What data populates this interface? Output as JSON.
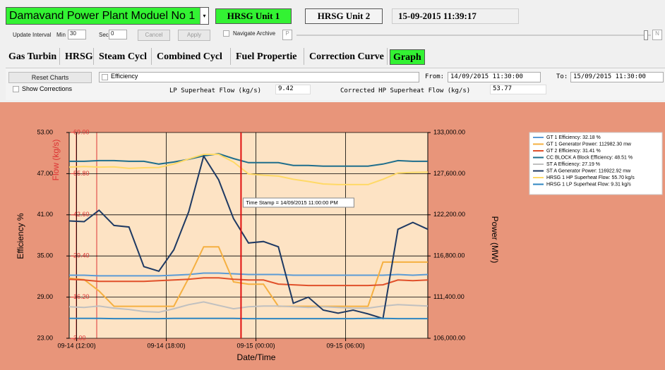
{
  "header": {
    "plant": "Damavand Power Plant Moduel No 1",
    "units": [
      "HRSG Unit 1",
      "HRSG Unit 2"
    ],
    "datetime": "15-09-2015 11:39:17"
  },
  "toolbar": {
    "update_interval": "Update Interval",
    "min_label": "Min",
    "min": 30,
    "sec_label": "Sec",
    "sec": 0,
    "cancel": "Cancel",
    "apply": "Apply",
    "navigate_archive": "Navigate Archive",
    "prev": "P",
    "next": "N"
  },
  "tabs": [
    "Gas Turbin",
    "HRSG",
    "Steam Cycl",
    "Combined Cycl",
    "Fuel Propertie",
    "Correction Curve",
    "Graph"
  ],
  "active_tab": 6,
  "panel": {
    "reset": "Reset Charts",
    "series_select": "Efficiency",
    "from_label": "From:",
    "from": "14/09/2015 11:30:00",
    "to_label": "To:",
    "to": "15/09/2015 11:30:00",
    "show_corrections": "Show Corrections",
    "lp_label": "LP Superheat Flow (kg/s)",
    "lp_value": 9.42,
    "hp_label": "Corrected HP Superheat Flow (kg/s)",
    "hp_value": 53.77
  },
  "chart_data": {
    "type": "line",
    "xlabel": "Date/Time",
    "ylabel": "Efficiency %",
    "y2label": "Power (MW)",
    "y3label": "Flow (kg/s)",
    "x": [
      11.5,
      12.5,
      13.5,
      14.5,
      15.5,
      16.5,
      17.5,
      18.5,
      19.5,
      20.5,
      21.5,
      22.5,
      23.5,
      24.5,
      25.5,
      26.5,
      27.5,
      28.5,
      29.5,
      30.5,
      31.5,
      32.5,
      33.5,
      34.5,
      35.5
    ],
    "xlim": [
      11.5,
      35.5
    ],
    "xticks": [
      {
        "value": 12,
        "label": "09-14 (12:00)"
      },
      {
        "value": 18,
        "label": "09-14 (18:00)"
      },
      {
        "value": 24,
        "label": "09-15 (00:00)"
      },
      {
        "value": 30,
        "label": "09-15 (06:00)"
      }
    ],
    "ylim": [
      23,
      53
    ],
    "yticks": [
      {
        "value": 23,
        "label": "23.00"
      },
      {
        "value": 29,
        "label": "29.00"
      },
      {
        "value": 35,
        "label": "35.00"
      },
      {
        "value": 41,
        "label": "41.00"
      },
      {
        "value": 47,
        "label": "47.00"
      },
      {
        "value": 53,
        "label": "53.00"
      }
    ],
    "y2lim": [
      106000,
      133000
    ],
    "y2ticks": [
      {
        "value": 106000,
        "label": "106,000.00"
      },
      {
        "value": 111400,
        "label": "111,400.00"
      },
      {
        "value": 116800,
        "label": "116,800.00"
      },
      {
        "value": 122200,
        "label": "122,200.00"
      },
      {
        "value": 127600,
        "label": "127,600.00"
      },
      {
        "value": 133000,
        "label": "133,000.00"
      }
    ],
    "y3lim": [
      3,
      69
    ],
    "y3ticks": [
      {
        "value": 3,
        "label": "3.00"
      },
      {
        "value": 16.2,
        "label": "16.20"
      },
      {
        "value": 29.4,
        "label": "29.40"
      },
      {
        "value": 42.6,
        "label": "42.60"
      },
      {
        "value": 55.8,
        "label": "55.80"
      },
      {
        "value": 69,
        "label": "69.00"
      }
    ],
    "grid": true,
    "cursor": {
      "x": 23,
      "label": "Time Stamp = 14/09/2015 11:00:00 PM"
    },
    "series": [
      {
        "name": "GT 1 Efficiency: 32.18 %",
        "color": "#5b9bd5",
        "axis": "y",
        "values": [
          32.2,
          32.2,
          32.1,
          32.1,
          32.1,
          32.1,
          32.1,
          32.2,
          32.3,
          32.5,
          32.5,
          32.4,
          32.3,
          32.3,
          32.3,
          32.2,
          32.2,
          32.2,
          32.2,
          32.2,
          32.2,
          32.2,
          32.3,
          32.2,
          32.3
        ]
      },
      {
        "name": "GT 1 Generator Power: 112982.30 mw",
        "color": "#f5b041",
        "axis": "y2",
        "values": [
          113900,
          113700,
          112200,
          110200,
          110200,
          110200,
          110200,
          110200,
          113900,
          118000,
          118000,
          113400,
          113100,
          113100,
          110200,
          110200,
          110200,
          110200,
          110200,
          110200,
          110200,
          116000,
          116000,
          116000,
          116000
        ]
      },
      {
        "name": "GT 2 Efficiency: 31.41 %",
        "color": "#e0502a",
        "axis": "y",
        "values": [
          31.6,
          31.5,
          31.3,
          31.3,
          31.3,
          31.3,
          31.4,
          31.5,
          31.6,
          31.8,
          31.8,
          31.6,
          31.5,
          31.5,
          30.9,
          30.8,
          30.7,
          30.7,
          30.7,
          30.7,
          30.7,
          30.8,
          31.5,
          31.4,
          31.5
        ]
      },
      {
        "name": "CC BLOCK A Block Efficiency: 48.51 %",
        "color": "#1f6e8c",
        "axis": "y",
        "values": [
          48.8,
          48.8,
          48.9,
          48.9,
          48.8,
          48.8,
          48.4,
          48.7,
          49.1,
          49.6,
          49.9,
          49.2,
          48.6,
          48.6,
          48.6,
          48.2,
          48.2,
          48.1,
          48.1,
          48.1,
          48.1,
          48.4,
          48.9,
          48.8,
          48.8
        ]
      },
      {
        "name": "ST A Efficiency: 27.19 %",
        "color": "#c0c0c0",
        "axis": "y",
        "values": [
          27.6,
          27.5,
          27.7,
          27.4,
          27.2,
          26.9,
          26.8,
          27.3,
          27.9,
          28.3,
          27.8,
          27.3,
          27.6,
          27.7,
          27.7,
          27.6,
          27.5,
          27.6,
          27.5,
          27.4,
          27.4,
          27.7,
          27.9,
          27.8,
          27.7
        ]
      },
      {
        "name": "ST A Generator Power: 116922.92 mw",
        "color": "#1f3a63",
        "axis": "y2",
        "values": [
          121400,
          121300,
          122800,
          120800,
          120600,
          115400,
          114800,
          117600,
          122600,
          129900,
          126800,
          121700,
          118500,
          118700,
          118000,
          110600,
          111400,
          109700,
          109300,
          109700,
          109200,
          108600,
          120300,
          121200,
          120300
        ]
      },
      {
        "name": "HRSG 1 HP Superheat Flow: 55.70 kg/s",
        "color": "#ffd966",
        "axis": "y3",
        "values": [
          57.9,
          58.1,
          57.9,
          58.0,
          57.5,
          57.7,
          57.8,
          58.9,
          60.5,
          62.0,
          62.0,
          59.5,
          55.7,
          55.3,
          55.0,
          54.0,
          53.3,
          52.5,
          52.3,
          52.3,
          52.3,
          54.0,
          56.0,
          56.2,
          56.3
        ]
      },
      {
        "name": "HRSG 1 LP Superheat Flow: 9.31 kg/s",
        "color": "#2e86c1",
        "axis": "y3",
        "values": [
          9.4,
          9.4,
          9.4,
          9.3,
          9.3,
          9.3,
          9.3,
          9.4,
          9.4,
          9.4,
          9.4,
          9.4,
          9.3,
          9.3,
          9.3,
          9.3,
          9.3,
          9.3,
          9.3,
          9.3,
          9.4,
          9.4,
          9.3,
          9.3,
          9.3
        ]
      }
    ]
  }
}
